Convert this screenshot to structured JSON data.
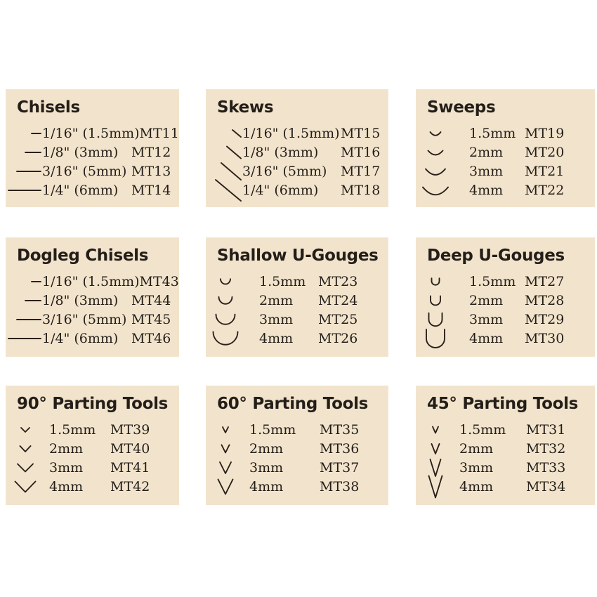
{
  "theme": {
    "page_bg": "#ffffff",
    "panel_bg": "#f2e4cc",
    "text_color": "#241e19",
    "icon_stroke": "#2b211a"
  },
  "panels": [
    {
      "title": "Chisels",
      "unit_style": "inch",
      "rows": [
        {
          "icon": "hline-1",
          "size": "1/16\" (1.5mm)",
          "model": "MT11"
        },
        {
          "icon": "hline-2",
          "size": "1/8\" (3mm)",
          "model": "MT12"
        },
        {
          "icon": "hline-3",
          "size": "3/16\" (5mm)",
          "model": "MT13"
        },
        {
          "icon": "hline-4",
          "size": "1/4\" (6mm)",
          "model": "MT14"
        }
      ]
    },
    {
      "title": "Skews",
      "unit_style": "inch",
      "rows": [
        {
          "icon": "diag-1",
          "size": "1/16\" (1.5mm)",
          "model": "MT15"
        },
        {
          "icon": "diag-2",
          "size": "1/8\" (3mm)",
          "model": "MT16"
        },
        {
          "icon": "diag-3",
          "size": "3/16\" (5mm)",
          "model": "MT17"
        },
        {
          "icon": "diag-4",
          "size": "1/4\" (6mm)",
          "model": "MT18"
        }
      ]
    },
    {
      "title": "Sweeps",
      "unit_style": "mm",
      "rows": [
        {
          "icon": "sweep-1",
          "size": "1.5mm",
          "model": "MT19"
        },
        {
          "icon": "sweep-2",
          "size": "2mm",
          "model": "MT20"
        },
        {
          "icon": "sweep-3",
          "size": "3mm",
          "model": "MT21"
        },
        {
          "icon": "sweep-4",
          "size": "4mm",
          "model": "MT22"
        }
      ]
    },
    {
      "title": "Dogleg Chisels",
      "unit_style": "inch",
      "rows": [
        {
          "icon": "hline-1",
          "size": "1/16\" (1.5mm)",
          "model": "MT43"
        },
        {
          "icon": "hline-2",
          "size": "1/8\" (3mm)",
          "model": "MT44"
        },
        {
          "icon": "hline-3",
          "size": "3/16\" (5mm)",
          "model": "MT45"
        },
        {
          "icon": "hline-4",
          "size": "1/4\" (6mm)",
          "model": "MT46"
        }
      ]
    },
    {
      "title": "Shallow U-Gouges",
      "unit_style": "mm",
      "rows": [
        {
          "icon": "ushallow-1",
          "size": "1.5mm",
          "model": "MT23"
        },
        {
          "icon": "ushallow-2",
          "size": "2mm",
          "model": "MT24"
        },
        {
          "icon": "ushallow-3",
          "size": "3mm",
          "model": "MT25"
        },
        {
          "icon": "ushallow-4",
          "size": "4mm",
          "model": "MT26"
        }
      ]
    },
    {
      "title": "Deep U-Gouges",
      "unit_style": "mm",
      "rows": [
        {
          "icon": "udeep-1",
          "size": "1.5mm",
          "model": "MT27"
        },
        {
          "icon": "udeep-2",
          "size": "2mm",
          "model": "MT28"
        },
        {
          "icon": "udeep-3",
          "size": "3mm",
          "model": "MT29"
        },
        {
          "icon": "udeep-4",
          "size": "4mm",
          "model": "MT30"
        }
      ]
    },
    {
      "title": "90° Parting Tools",
      "unit_style": "mm",
      "rows": [
        {
          "icon": "v90-1",
          "size": "1.5mm",
          "model": "MT39"
        },
        {
          "icon": "v90-2",
          "size": "2mm",
          "model": "MT40"
        },
        {
          "icon": "v90-3",
          "size": "3mm",
          "model": "MT41"
        },
        {
          "icon": "v90-4",
          "size": "4mm",
          "model": "MT42"
        }
      ]
    },
    {
      "title": "60° Parting Tools",
      "unit_style": "mm",
      "rows": [
        {
          "icon": "v60-1",
          "size": "1.5mm",
          "model": "MT35"
        },
        {
          "icon": "v60-2",
          "size": "2mm",
          "model": "MT36"
        },
        {
          "icon": "v60-3",
          "size": "3mm",
          "model": "MT37"
        },
        {
          "icon": "v60-4",
          "size": "4mm",
          "model": "MT38"
        }
      ]
    },
    {
      "title": "45° Parting Tools",
      "unit_style": "mm",
      "rows": [
        {
          "icon": "v45-1",
          "size": "1.5mm",
          "model": "MT31"
        },
        {
          "icon": "v45-2",
          "size": "2mm",
          "model": "MT32"
        },
        {
          "icon": "v45-3",
          "size": "3mm",
          "model": "MT33"
        },
        {
          "icon": "v45-4",
          "size": "4mm",
          "model": "MT34"
        }
      ]
    }
  ]
}
